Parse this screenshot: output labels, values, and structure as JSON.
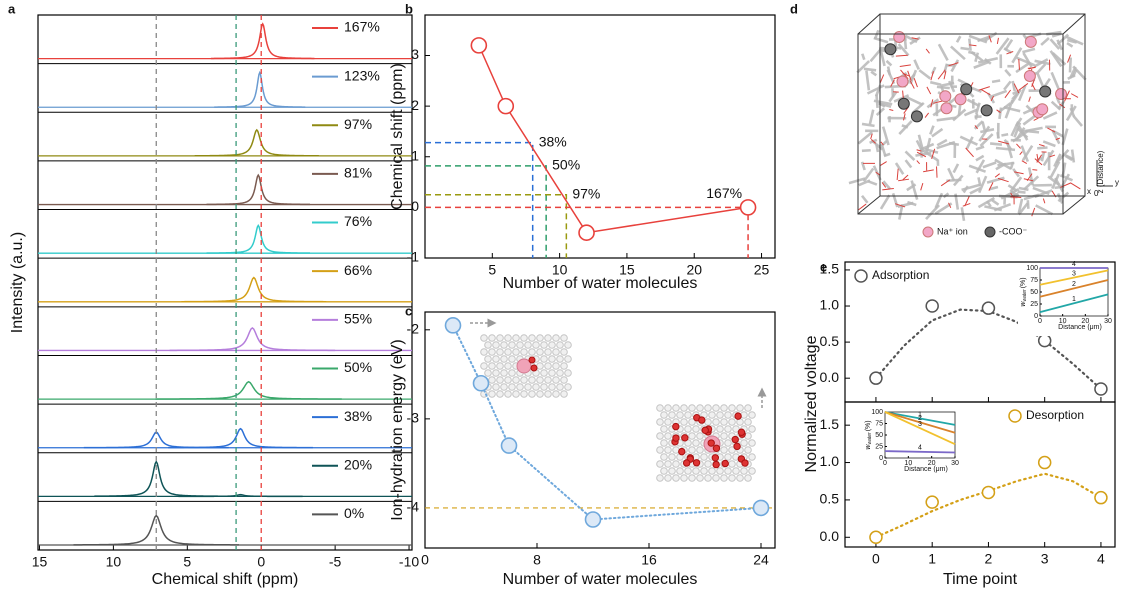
{
  "panel_labels": [
    "a",
    "b",
    "c",
    "d",
    "e"
  ],
  "figure_d": {
    "legend": [
      "Na⁺ ion",
      "-COO⁻"
    ],
    "axis_z": "z (Distance)",
    "axis_x": "x",
    "axis_y": "y",
    "origin": "0"
  },
  "chart_data": [
    {
      "type": "spectra",
      "x_label": "Chemical shift (ppm)",
      "y_label": "Intensity (a.u.)",
      "xlim": [
        15.1,
        -10.2
      ],
      "xticks": [
        15,
        10,
        5,
        0,
        -5,
        -10
      ],
      "reference_lines": [
        {
          "x": 7.1,
          "color": "#888888"
        },
        {
          "x": 1.7,
          "color": "#3a9a7a"
        },
        {
          "x": 0,
          "color": "#e8413c"
        }
      ],
      "series": [
        {
          "name": "167%",
          "color": "#e8413c",
          "peak_x": [
            -0.1
          ],
          "peak_heights": [
            1.0
          ],
          "peak_widths": [
            0.25
          ]
        },
        {
          "name": "123%",
          "color": "#6a9bd1",
          "peak_x": [
            0.1
          ],
          "peak_heights": [
            1.0
          ],
          "peak_widths": [
            0.22
          ]
        },
        {
          "name": "97%",
          "color": "#8f8a12",
          "peak_x": [
            0.3
          ],
          "peak_heights": [
            0.75
          ],
          "peak_widths": [
            0.3
          ]
        },
        {
          "name": "81%",
          "color": "#7a5a50",
          "peak_x": [
            0.2
          ],
          "peak_heights": [
            0.85
          ],
          "peak_widths": [
            0.25
          ]
        },
        {
          "name": "76%",
          "color": "#33cccc",
          "peak_x": [
            0.2
          ],
          "peak_heights": [
            0.8
          ],
          "peak_widths": [
            0.25
          ]
        },
        {
          "name": "66%",
          "color": "#d4a017",
          "peak_x": [
            0.5
          ],
          "peak_heights": [
            0.7
          ],
          "peak_widths": [
            0.35
          ]
        },
        {
          "name": "55%",
          "color": "#b57edc",
          "peak_x": [
            0.6
          ],
          "peak_heights": [
            0.65
          ],
          "peak_widths": [
            0.4
          ]
        },
        {
          "name": "50%",
          "color": "#3aa86b",
          "peak_x": [
            0.85
          ],
          "peak_heights": [
            0.5
          ],
          "peak_widths": [
            0.45
          ]
        },
        {
          "name": "38%",
          "color": "#2c6fd6",
          "peak_x": [
            7.1,
            1.4
          ],
          "peak_heights": [
            0.45,
            0.55
          ],
          "peak_widths": [
            0.35,
            0.35
          ]
        },
        {
          "name": "20%",
          "color": "#0f5457",
          "peak_x": [
            7.1,
            1.4
          ],
          "peak_heights": [
            1.0,
            0.05
          ],
          "peak_widths": [
            0.3,
            0.3
          ]
        },
        {
          "name": "0%",
          "color": "#555555",
          "peak_x": [
            7.1
          ],
          "peak_heights": [
            0.85
          ],
          "peak_widths": [
            0.4
          ]
        }
      ]
    },
    {
      "type": "line",
      "x_label": "Number of water molecules",
      "y_label": "Chemical shift (ppm)",
      "xlim": [
        0,
        26
      ],
      "xticks": [
        5,
        10,
        15,
        20,
        25
      ],
      "ylim": [
        -1,
        3.8
      ],
      "yticks": [
        -1,
        0,
        1,
        2,
        3
      ],
      "x": [
        4,
        6,
        12,
        24
      ],
      "values": [
        3.2,
        2.0,
        -0.5,
        0
      ],
      "color": "#e8413c",
      "marker_fill": "#ffffff",
      "line_style": "solid",
      "annotations": [
        {
          "text": "38%",
          "x": 8,
          "y": 1.28,
          "color": "#2a6fd6"
        },
        {
          "text": "50%",
          "x": 9,
          "y": 0.82,
          "color": "#2e9e6a"
        },
        {
          "text": "97%",
          "x": 10.5,
          "y": 0.25,
          "color": "#9a9a10"
        },
        {
          "text": "167%",
          "x": 24,
          "y": 0,
          "color": "#e8413c"
        }
      ]
    },
    {
      "type": "line",
      "x_label": "Number of water molecules",
      "y_label": "Ion-hydration energy (eV)",
      "xlim": [
        0,
        25
      ],
      "xticks": [
        0,
        8,
        16,
        24
      ],
      "ylim": [
        -4.45,
        -1.8
      ],
      "yticks": [
        -2,
        -3,
        -4
      ],
      "x": [
        2,
        4,
        6,
        12,
        24
      ],
      "values": [
        -1.95,
        -2.6,
        -3.3,
        -4.13,
        -4.0
      ],
      "color": "#6fa8dc",
      "marker_fill": "#dce9f7",
      "line_style": "dotted",
      "ref_y": -4.0,
      "ref_color": "#d4a017"
    },
    {
      "type": "scatter",
      "y_label": "Normalized voltage",
      "legend": "upper left",
      "xlim": [
        -0.55,
        4.25
      ],
      "xticks": [
        0,
        1,
        2,
        3,
        4
      ],
      "ylim": [
        -0.33,
        1.61
      ],
      "yticks": [
        {
          "value": 0,
          "label": "0.0"
        },
        {
          "value": 0.5,
          "label": "0.5"
        },
        {
          "value": 1,
          "label": "1.0"
        },
        {
          "value": 1.5,
          "label": "1.5"
        }
      ],
      "series": [
        {
          "name": "Adsorption",
          "color": "#555555",
          "x": [
            0,
            1,
            2,
            3,
            4
          ],
          "values": [
            0,
            1.0,
            0.97,
            0.52,
            -0.15
          ]
        }
      ],
      "fit": {
        "x": [
          0,
          0.5,
          1,
          1.5,
          2,
          2.5,
          3,
          3.5,
          4
        ],
        "values": [
          0.0,
          0.45,
          0.8,
          0.95,
          0.93,
          0.78,
          0.52,
          0.2,
          -0.15
        ]
      },
      "inset": {
        "xlim": [
          0,
          30
        ],
        "xticks": [
          0,
          10,
          20,
          30
        ],
        "ylim": [
          0,
          100
        ],
        "yticks": [
          0,
          25,
          50,
          75,
          100
        ],
        "x_label": "Distance (μm)",
        "y_label": [
          "w",
          "water",
          "(%)"
        ],
        "x": [
          0,
          30
        ],
        "series": [
          {
            "name": "1",
            "color": "#22a7a7",
            "values": [
              8,
              45
            ]
          },
          {
            "name": "2",
            "color": "#d9822b",
            "values": [
              40,
              75
            ]
          },
          {
            "name": "3",
            "color": "#f2c12e",
            "values": [
              65,
              95
            ]
          },
          {
            "name": "4",
            "color": "#7b68c8",
            "values": [
              100,
              100
            ]
          }
        ]
      }
    },
    {
      "type": "scatter",
      "x_label": "Time point",
      "legend": "upper right",
      "xlim": [
        -0.55,
        4.25
      ],
      "xticks": [
        0,
        1,
        2,
        3,
        4
      ],
      "ylim": [
        -0.13,
        1.81
      ],
      "yticks": [
        {
          "value": 0,
          "label": "0.0"
        },
        {
          "value": 0.5,
          "label": "0.5"
        },
        {
          "value": 1,
          "label": "1.0"
        },
        {
          "value": 1.5,
          "label": "1.5"
        }
      ],
      "series": [
        {
          "name": "Desorption",
          "color": "#d4a017",
          "x": [
            0,
            1,
            2,
            3,
            4
          ],
          "values": [
            0,
            0.47,
            0.6,
            1.0,
            0.53
          ]
        }
      ],
      "fit": {
        "x": [
          0,
          0.5,
          1,
          1.5,
          2,
          2.5,
          3,
          3.5,
          4
        ],
        "values": [
          0.0,
          0.17,
          0.35,
          0.5,
          0.62,
          0.75,
          0.85,
          0.75,
          0.53
        ]
      },
      "inset": {
        "xlim": [
          0,
          30
        ],
        "xticks": [
          0,
          10,
          20,
          30
        ],
        "ylim": [
          0,
          100
        ],
        "yticks": [
          0,
          25,
          50,
          75,
          100
        ],
        "x_label": "Distance (μm)",
        "y_label": [
          "w",
          "water",
          "(%)"
        ],
        "x": [
          0,
          30
        ],
        "series": [
          {
            "name": "1",
            "color": "#22a7a7",
            "values": [
              100,
              72
            ]
          },
          {
            "name": "2",
            "color": "#d9822b",
            "values": [
              100,
              55
            ]
          },
          {
            "name": "3",
            "color": "#f2c12e",
            "values": [
              100,
              30
            ]
          },
          {
            "name": "4",
            "color": "#7b68c8",
            "values": [
              15,
              12
            ]
          }
        ]
      }
    }
  ]
}
